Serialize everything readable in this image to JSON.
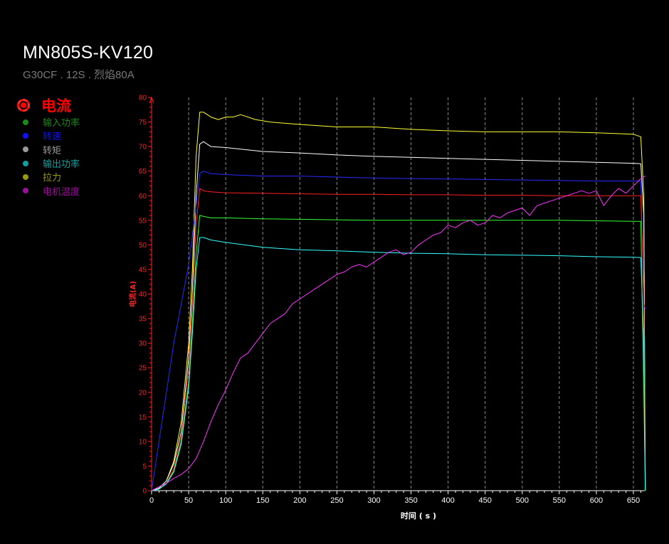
{
  "header": {
    "title": "MN805S-KV120",
    "subtitle": "G30CF . 12S . 烈焰80A"
  },
  "legend": {
    "active": {
      "label": "电流",
      "color": "#ff0000",
      "icon": "active-series-marker-icon"
    },
    "items": [
      {
        "label": "输入功率",
        "color": "#1a8a1a"
      },
      {
        "label": "转速",
        "color": "#1010ff"
      },
      {
        "label": "转矩",
        "color": "#9a9a9a"
      },
      {
        "label": "输出功率",
        "color": "#12a0a0"
      },
      {
        "label": "拉力",
        "color": "#9a9a10"
      },
      {
        "label": "电机温度",
        "color": "#9a109a"
      }
    ]
  },
  "chart_data": {
    "type": "line",
    "title": "",
    "xlabel": "时间 ( s )",
    "ylabel": "电流(A)",
    "xlim": [
      0,
      665
    ],
    "ylim": [
      0,
      80
    ],
    "x_ticks": [
      "0",
      "50",
      "100",
      "150",
      "200",
      "250",
      "300",
      "350",
      "400",
      "450",
      "500",
      "550",
      "600",
      "650"
    ],
    "y_ticks": [
      "0",
      "5",
      "10",
      "15",
      "20",
      "25",
      "30",
      "35",
      "40",
      "45",
      "50",
      "55",
      "60",
      "65",
      "70",
      "75",
      "80"
    ],
    "grid": "vertical dashed",
    "legend_position": "left",
    "series": [
      {
        "name": "拉力",
        "color": "#ffff33",
        "x": [
          0,
          10,
          20,
          30,
          40,
          50,
          55,
          60,
          65,
          70,
          80,
          90,
          100,
          110,
          120,
          140,
          160,
          200,
          250,
          300,
          350,
          400,
          450,
          500,
          550,
          600,
          650,
          660,
          664,
          666
        ],
        "y": [
          0,
          0.5,
          2,
          6,
          14,
          30,
          45,
          68,
          77,
          77,
          76,
          75.5,
          76,
          76,
          76.5,
          75.5,
          75,
          74.5,
          74,
          74,
          73.5,
          73.2,
          73,
          73,
          73,
          72.8,
          72.5,
          72,
          60,
          0
        ]
      },
      {
        "name": "转矩",
        "color": "#ffffff",
        "x": [
          0,
          10,
          20,
          30,
          40,
          50,
          55,
          60,
          65,
          70,
          80,
          100,
          150,
          200,
          250,
          300,
          350,
          400,
          450,
          500,
          550,
          600,
          650,
          660,
          664,
          666
        ],
        "y": [
          0,
          0.5,
          2,
          5.5,
          12,
          27,
          40,
          60,
          70.5,
          71,
          70,
          69.8,
          69,
          68.7,
          68.3,
          68,
          67.8,
          67.6,
          67.4,
          67.2,
          67,
          66.8,
          66.6,
          66.5,
          56,
          0
        ]
      },
      {
        "name": "转速",
        "color": "#2a2aff",
        "x": [
          0,
          5,
          10,
          20,
          30,
          40,
          50,
          55,
          60,
          65,
          70,
          80,
          100,
          150,
          200,
          250,
          300,
          350,
          400,
          450,
          500,
          550,
          600,
          650,
          660,
          664,
          666
        ],
        "y": [
          0,
          5,
          10,
          20,
          30,
          38,
          46,
          52,
          58,
          64.5,
          65,
          64.5,
          64.3,
          64,
          64,
          63.8,
          63.6,
          63.5,
          63.4,
          63.3,
          63.2,
          63.1,
          63,
          63,
          63,
          38,
          37
        ]
      },
      {
        "name": "电流",
        "color": "#ff2020",
        "x": [
          0,
          10,
          20,
          30,
          40,
          50,
          55,
          60,
          65,
          70,
          80,
          100,
          150,
          200,
          250,
          300,
          350,
          400,
          450,
          500,
          550,
          600,
          650,
          660,
          664,
          666
        ],
        "y": [
          0,
          0.3,
          1.5,
          4.5,
          11,
          25,
          38,
          54,
          61.5,
          61,
          60.8,
          60.6,
          60.5,
          60.4,
          60.3,
          60.3,
          60.2,
          60.2,
          60.1,
          60.1,
          60,
          60,
          60,
          60,
          40,
          0
        ]
      },
      {
        "name": "输入功率",
        "color": "#33ff33",
        "x": [
          0,
          10,
          20,
          30,
          40,
          50,
          55,
          60,
          65,
          70,
          80,
          100,
          150,
          200,
          250,
          300,
          350,
          400,
          450,
          500,
          550,
          600,
          650,
          660,
          664,
          666
        ],
        "y": [
          0,
          0.3,
          1.5,
          4,
          10,
          22,
          34,
          48,
          56,
          55.8,
          55.5,
          55.5,
          55.3,
          55.2,
          55.1,
          55,
          55,
          55,
          55,
          55,
          55,
          54.9,
          54.8,
          54.8,
          20,
          0
        ]
      },
      {
        "name": "输出功率",
        "color": "#33ffff",
        "x": [
          0,
          10,
          20,
          30,
          40,
          50,
          55,
          60,
          65,
          70,
          80,
          100,
          150,
          200,
          250,
          300,
          350,
          400,
          450,
          500,
          550,
          600,
          650,
          660,
          664,
          666
        ],
        "y": [
          0,
          0.3,
          1.4,
          3.8,
          9.5,
          21,
          32,
          45,
          51.5,
          51.5,
          51,
          50.5,
          49.5,
          49,
          48.8,
          48.5,
          48.3,
          48.2,
          48,
          47.9,
          47.8,
          47.6,
          47.5,
          47.4,
          30,
          0
        ]
      },
      {
        "name": "电机温度",
        "color": "#ff33ff",
        "x": [
          0,
          10,
          20,
          30,
          40,
          50,
          60,
          70,
          80,
          90,
          100,
          110,
          120,
          130,
          140,
          150,
          160,
          170,
          180,
          190,
          200,
          210,
          220,
          230,
          240,
          250,
          260,
          270,
          280,
          290,
          300,
          310,
          320,
          330,
          340,
          350,
          360,
          370,
          380,
          390,
          400,
          410,
          420,
          430,
          440,
          450,
          460,
          470,
          480,
          490,
          500,
          510,
          520,
          530,
          540,
          550,
          560,
          570,
          580,
          590,
          600,
          610,
          620,
          630,
          640,
          650,
          660,
          666
        ],
        "y": [
          0,
          0.8,
          1.5,
          2.5,
          3.3,
          4.5,
          6.5,
          10,
          14,
          17.5,
          20.5,
          24,
          27,
          28,
          30,
          32,
          34,
          35,
          36,
          38,
          39,
          40,
          41,
          42,
          43,
          44,
          44.5,
          45.5,
          46,
          45.5,
          46.5,
          47.5,
          48.5,
          49,
          48,
          48.5,
          50,
          51,
          52,
          52.5,
          54,
          53.5,
          54.5,
          55,
          54,
          54.5,
          56,
          55.5,
          56.5,
          57,
          57.5,
          56,
          58,
          58.5,
          59,
          59.5,
          60,
          60.5,
          61,
          60.5,
          61,
          58,
          60,
          61.5,
          60.5,
          62,
          63.5,
          64
        ]
      }
    ]
  }
}
